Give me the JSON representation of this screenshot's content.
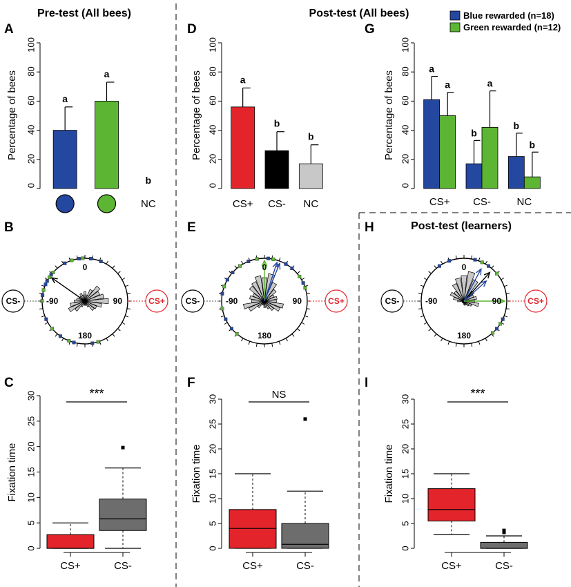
{
  "colors": {
    "red": "#e3242b",
    "blue": "#2447a0",
    "green": "#5db534",
    "black": "#000000",
    "light_gray": "#c8c8c8",
    "dark_gray": "#6d6d6d",
    "rose_gray": "#c8c8c8"
  },
  "headers": {
    "pre_all": "Pre-test (All bees)",
    "post_all": "Post-test (All bees)",
    "post_learners": "Post-test (learners)"
  },
  "panel_labels": {
    "A": "A",
    "B": "B",
    "C": "C",
    "D": "D",
    "E": "E",
    "F": "F",
    "G": "G",
    "H": "H",
    "I": "I"
  },
  "legend": {
    "blue": "Blue rewarded (n=18)",
    "green": "Green rewarded (n=12)"
  },
  "circular": {
    "cs_minus": "CS-",
    "cs_plus": "CS+",
    "label_0": "0",
    "label_90": "90",
    "label_neg90": "-90",
    "label_180": "180"
  },
  "chart_data": [
    {
      "id": "A",
      "type": "bar",
      "title": "Pre-test (All bees)",
      "ylabel": "Percentage of bees",
      "ylim": [
        0,
        100
      ],
      "yticks": [
        "0",
        "20",
        "40",
        "60",
        "80",
        "100"
      ],
      "categories": [
        "blue-circle",
        "green-circle",
        "NC"
      ],
      "category_labels": [
        "",
        "",
        "NC"
      ],
      "values": [
        40,
        60,
        0
      ],
      "errors": [
        16,
        13,
        0
      ],
      "letters": [
        "a",
        "a",
        "b"
      ],
      "colors": [
        "blue",
        "green",
        "none"
      ]
    },
    {
      "id": "D",
      "type": "bar",
      "ylabel": "Percentage of bees",
      "ylim": [
        0,
        100
      ],
      "yticks": [
        "0",
        "20",
        "40",
        "60",
        "80",
        "100"
      ],
      "categories": [
        "CS+",
        "CS-",
        "NC"
      ],
      "category_labels": [
        "CS+",
        "CS-",
        "NC"
      ],
      "values": [
        56,
        26,
        17
      ],
      "errors": [
        13,
        13,
        13
      ],
      "letters": [
        "a",
        "b",
        "b"
      ],
      "colors": [
        "red",
        "black",
        "light_gray"
      ]
    },
    {
      "id": "G",
      "type": "bar",
      "ylabel": "Percentage of bees",
      "ylim": [
        0,
        100
      ],
      "yticks": [
        "0",
        "20",
        "40",
        "60",
        "80",
        "100"
      ],
      "categories": [
        "CS+",
        "CS-",
        "NC"
      ],
      "category_labels": [
        "CS+",
        "CS-",
        "NC"
      ],
      "series": [
        {
          "name": "Blue rewarded (n=18)",
          "color": "blue",
          "values": [
            61,
            17,
            22
          ],
          "errors": [
            16,
            16,
            16
          ],
          "letters": [
            "a",
            "b",
            "b"
          ]
        },
        {
          "name": "Green rewarded (n=12)",
          "color": "green",
          "values": [
            50,
            42,
            8
          ],
          "errors": [
            16,
            25,
            17
          ],
          "letters": [
            "a",
            "a",
            "b"
          ]
        }
      ]
    },
    {
      "id": "B",
      "type": "rose",
      "rose_lengths": [
        0.22,
        0.15,
        0.3,
        0.45,
        0.38,
        0.45,
        0.55,
        0.4,
        0.3,
        0.28,
        0.15,
        0.1,
        0.1,
        0.08,
        0.15,
        0.3,
        0.42,
        0.35,
        0.25,
        0.2,
        0.15,
        0.15,
        0.2,
        0.15
      ],
      "arrows": [
        {
          "angle": -55,
          "length": 0.95,
          "color": "black"
        }
      ],
      "dots": [
        {
          "angle": -8,
          "color": "blue"
        },
        {
          "angle": -18,
          "color": "green"
        },
        {
          "angle": -28,
          "color": "blue"
        },
        {
          "angle": -48,
          "color": "green"
        },
        {
          "angle": -52,
          "color": "blue"
        },
        {
          "angle": -56,
          "color": "green"
        },
        {
          "angle": -62,
          "color": "blue"
        },
        {
          "angle": -67,
          "color": "blue"
        },
        {
          "angle": -75,
          "color": "green"
        },
        {
          "angle": -82,
          "color": "blue"
        },
        {
          "angle": -90,
          "color": "green"
        },
        {
          "angle": -115,
          "color": "blue"
        },
        {
          "angle": -130,
          "color": "green"
        },
        {
          "angle": -145,
          "color": "blue"
        },
        {
          "angle": -158,
          "color": "green"
        },
        {
          "angle": -165,
          "color": "blue"
        },
        {
          "angle": 170,
          "color": "blue"
        },
        {
          "angle": 162,
          "color": "green"
        },
        {
          "angle": 8,
          "color": "blue"
        },
        {
          "angle": 22,
          "color": "blue"
        },
        {
          "angle": -3,
          "color": "green"
        }
      ]
    },
    {
      "id": "E",
      "type": "rose",
      "rose_lengths": [
        0.55,
        0.65,
        0.48,
        0.35,
        0.25,
        0.3,
        0.28,
        0.45,
        0.4,
        0.28,
        0.2,
        0.15,
        0.15,
        0.1,
        0.1,
        0.2,
        0.4,
        0.5,
        0.3,
        0.35,
        0.3,
        0.45,
        0.5,
        0.6
      ],
      "arrows": [
        {
          "angle": 0,
          "length": 0.95,
          "color": "green"
        },
        {
          "angle": 22,
          "length": 0.95,
          "color": "blue"
        },
        {
          "angle": 18,
          "length": 0.95,
          "color": "blue"
        }
      ],
      "dots": [
        {
          "angle": -10,
          "color": "green"
        },
        {
          "angle": -22,
          "color": "blue"
        },
        {
          "angle": -35,
          "color": "green"
        },
        {
          "angle": -48,
          "color": "blue"
        },
        {
          "angle": -60,
          "color": "blue"
        },
        {
          "angle": -70,
          "color": "green"
        },
        {
          "angle": -80,
          "color": "blue"
        },
        {
          "angle": -100,
          "color": "green"
        },
        {
          "angle": -115,
          "color": "blue"
        },
        {
          "angle": -130,
          "color": "blue"
        },
        {
          "angle": -140,
          "color": "green"
        },
        {
          "angle": 30,
          "color": "blue"
        },
        {
          "angle": 40,
          "color": "blue"
        },
        {
          "angle": 55,
          "color": "green"
        },
        {
          "angle": 65,
          "color": "blue"
        },
        {
          "angle": 72,
          "color": "green"
        },
        {
          "angle": 5,
          "color": "blue"
        },
        {
          "angle": 12,
          "color": "green"
        }
      ]
    },
    {
      "id": "H",
      "type": "rose",
      "rose_lengths": [
        0.6,
        0.7,
        0.55,
        0.3,
        0.25,
        0.3,
        0.25,
        0.35,
        0.2,
        0.15,
        0.1,
        0.1,
        0.08,
        0.05,
        0.05,
        0.05,
        0.05,
        0.05,
        0.15,
        0.25,
        0.35,
        0.3,
        0.45,
        0.55
      ],
      "arrows": [
        {
          "angle": 42,
          "length": 0.9,
          "color": "black"
        },
        {
          "angle": 28,
          "length": 0.85,
          "color": "blue"
        },
        {
          "angle": 48,
          "length": 0.7,
          "color": "blue"
        },
        {
          "angle": 90,
          "length": 0.95,
          "color": "green"
        }
      ],
      "dots": [
        {
          "angle": 15,
          "color": "blue"
        },
        {
          "angle": 25,
          "color": "green"
        },
        {
          "angle": 35,
          "color": "blue"
        },
        {
          "angle": 50,
          "color": "green"
        },
        {
          "angle": 115,
          "color": "blue"
        },
        {
          "angle": 122,
          "color": "green"
        },
        {
          "angle": 130,
          "color": "blue"
        },
        {
          "angle": 138,
          "color": "green"
        },
        {
          "angle": -20,
          "color": "blue"
        },
        {
          "angle": -35,
          "color": "blue"
        }
      ]
    },
    {
      "id": "C",
      "type": "box",
      "ylabel": "Fixation time",
      "ylim": [
        0,
        30
      ],
      "yticks": [
        "0",
        "5",
        "10",
        "15",
        "20",
        "25",
        "30"
      ],
      "categories": [
        "CS+",
        "CS-"
      ],
      "boxes": [
        {
          "min": 0,
          "q1": 0,
          "median": 0,
          "q3": 2.7,
          "max": 5,
          "outliers": [],
          "color": "red"
        },
        {
          "min": 0,
          "q1": 3.5,
          "median": 5.8,
          "q3": 9.7,
          "max": 15.8,
          "outliers": [
            19.8
          ],
          "color": "dark_gray"
        }
      ],
      "significance": "***"
    },
    {
      "id": "F",
      "type": "box",
      "ylabel": "Fixation time",
      "ylim": [
        0,
        30
      ],
      "yticks": [
        "0",
        "5",
        "10",
        "15",
        "20",
        "25",
        "30"
      ],
      "categories": [
        "CS+",
        "CS-"
      ],
      "boxes": [
        {
          "min": 0,
          "q1": 0,
          "median": 4,
          "q3": 7.8,
          "max": 15,
          "outliers": [],
          "color": "red"
        },
        {
          "min": 0,
          "q1": 0,
          "median": 0.8,
          "q3": 5,
          "max": 11.5,
          "outliers": [
            26
          ],
          "color": "dark_gray"
        }
      ],
      "significance": "NS"
    },
    {
      "id": "I",
      "type": "box",
      "ylabel": "Fixation time",
      "ylim": [
        0,
        30
      ],
      "yticks": [
        "0",
        "5",
        "10",
        "15",
        "20",
        "25",
        "30"
      ],
      "categories": [
        "CS+",
        "CS-"
      ],
      "boxes": [
        {
          "min": 2.8,
          "q1": 5.5,
          "median": 7.8,
          "q3": 12,
          "max": 15,
          "outliers": [],
          "color": "red"
        },
        {
          "min": 0,
          "q1": 0,
          "median": 0,
          "q3": 1.2,
          "max": 2.5,
          "outliers": [
            3.2,
            3.6
          ],
          "color": "dark_gray"
        }
      ],
      "significance": "***"
    }
  ]
}
